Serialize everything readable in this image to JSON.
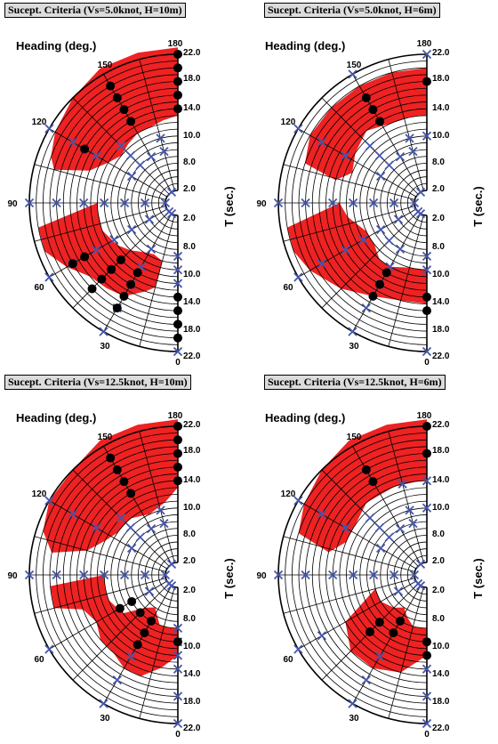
{
  "colors": {
    "region": "#ee2222",
    "cross": "#4455aa",
    "dot": "#000000",
    "title_bg": "#dcdcdc"
  },
  "axes": {
    "heading_label": "Heading (deg.)",
    "period_label": "T (sec.)",
    "angle_ticks": [
      "180",
      "150",
      "120",
      "90",
      "60",
      "30",
      "0"
    ],
    "period_ticks": [
      "22.0",
      "18.0",
      "14.0",
      "10.0",
      "8.0",
      "2.0"
    ]
  },
  "chart_data": [
    {
      "type": "polar-scatter",
      "title": "Sucept. Criteria (Vs=5.0knot, H=10m)",
      "theta_range": [
        0,
        180
      ],
      "period_ticks": [
        2,
        8,
        10,
        14,
        18,
        22
      ],
      "regions": [
        [
          [
            180,
            13
          ],
          [
            180,
            23
          ],
          [
            165,
            23
          ],
          [
            150,
            23
          ],
          [
            135,
            22
          ],
          [
            120,
            21
          ],
          [
            110,
            20
          ],
          [
            105,
            19
          ],
          [
            110,
            14
          ],
          [
            120,
            12
          ],
          [
            130,
            11
          ],
          [
            140,
            11.5
          ],
          [
            150,
            12
          ],
          [
            160,
            12
          ],
          [
            170,
            12.5
          ]
        ],
        [
          [
            90,
            12
          ],
          [
            80,
            21
          ],
          [
            70,
            21
          ],
          [
            60,
            19
          ],
          [
            50,
            17
          ],
          [
            40,
            16.5
          ],
          [
            30,
            16
          ],
          [
            20,
            14
          ],
          [
            15,
            13
          ],
          [
            15,
            9
          ],
          [
            25,
            8.5
          ],
          [
            35,
            9
          ],
          [
            45,
            10
          ],
          [
            55,
            11
          ],
          [
            70,
            12
          ],
          [
            85,
            12
          ]
        ]
      ],
      "crosses": [
        {
          "theta": 90,
          "T": [
            2,
            5,
            8,
            11,
            14,
            18,
            22
          ]
        },
        {
          "theta": 120,
          "T": [
            8,
            14,
            18,
            22
          ]
        },
        {
          "theta": 135,
          "T": [
            8,
            10,
            12
          ]
        },
        {
          "theta": 150,
          "T": [
            2,
            8
          ]
        },
        {
          "theta": 165,
          "T": [
            8,
            10
          ]
        },
        {
          "theta": 180,
          "T": []
        },
        {
          "theta": 60,
          "T": [
            5,
            8,
            11,
            14,
            18,
            22
          ]
        },
        {
          "theta": 45,
          "T": [
            2
          ]
        },
        {
          "theta": 30,
          "T": [
            2,
            8,
            11,
            14,
            18,
            22
          ]
        },
        {
          "theta": 15,
          "T": []
        },
        {
          "theta": 0,
          "T": [
            8,
            10,
            12,
            22
          ]
        }
      ],
      "dots": [
        {
          "theta": 180,
          "T": [
            14,
            16,
            18,
            20,
            22
          ]
        },
        {
          "theta": 150,
          "T": [
            14,
            16,
            18,
            20
          ]
        },
        {
          "theta": 120,
          "T": [
            16
          ]
        },
        {
          "theta": 60,
          "T": [
            16,
            18
          ]
        },
        {
          "theta": 45,
          "T": [
            12,
            14,
            16,
            18
          ]
        },
        {
          "theta": 30,
          "T": [
            12,
            14,
            16,
            18
          ]
        },
        {
          "theta": 0,
          "T": [
            14,
            16,
            18,
            20
          ]
        }
      ]
    },
    {
      "type": "polar-scatter",
      "title": "Sucept. Criteria (Vs=5.0knot, H=6m)",
      "theta_range": [
        0,
        180
      ],
      "period_ticks": [
        2,
        8,
        10,
        14,
        18,
        22
      ],
      "regions": [
        [
          [
            180,
            13
          ],
          [
            180,
            20
          ],
          [
            165,
            20
          ],
          [
            150,
            20
          ],
          [
            135,
            20
          ],
          [
            120,
            20
          ],
          [
            108,
            19
          ],
          [
            104,
            14
          ],
          [
            112,
            12
          ],
          [
            125,
            13
          ],
          [
            140,
            14
          ],
          [
            155,
            13
          ],
          [
            170,
            13
          ]
        ],
        [
          [
            90,
            13
          ],
          [
            80,
            21
          ],
          [
            70,
            21
          ],
          [
            60,
            20
          ],
          [
            45,
            18
          ],
          [
            30,
            16
          ],
          [
            15,
            15
          ],
          [
            0,
            15
          ],
          [
            0,
            10
          ],
          [
            15,
            10
          ],
          [
            30,
            11
          ],
          [
            40,
            11
          ],
          [
            52,
            10
          ],
          [
            65,
            10
          ],
          [
            80,
            12
          ]
        ]
      ],
      "crosses": [
        {
          "theta": 90,
          "T": [
            2,
            5,
            8,
            11,
            14,
            18,
            22
          ]
        },
        {
          "theta": 120,
          "T": [
            8,
            14,
            18,
            22
          ]
        },
        {
          "theta": 135,
          "T": [
            8,
            10,
            12
          ]
        },
        {
          "theta": 150,
          "T": [
            2,
            8,
            22
          ]
        },
        {
          "theta": 165,
          "T": [
            8,
            10
          ]
        },
        {
          "theta": 180,
          "T": [
            10,
            22
          ]
        },
        {
          "theta": 60,
          "T": [
            5,
            8,
            11,
            14,
            18,
            22
          ]
        },
        {
          "theta": 45,
          "T": [
            2,
            8
          ]
        },
        {
          "theta": 30,
          "T": [
            2,
            8,
            11,
            14,
            18,
            22
          ]
        },
        {
          "theta": 15,
          "T": []
        },
        {
          "theta": 0,
          "T": [
            8,
            10,
            22
          ]
        }
      ],
      "dots": [
        {
          "theta": 180,
          "T": [
            18
          ]
        },
        {
          "theta": 150,
          "T": [
            14,
            16,
            18
          ]
        },
        {
          "theta": 30,
          "T": [
            12,
            14,
            16
          ]
        },
        {
          "theta": 0,
          "T": [
            14,
            16
          ]
        }
      ]
    },
    {
      "type": "polar-scatter",
      "title": "Sucept. Criteria (Vs=12.5knot, H=10m)",
      "theta_range": [
        0,
        180
      ],
      "period_ticks": [
        2,
        8,
        10,
        14,
        18,
        22
      ],
      "regions": [
        [
          [
            180,
            13
          ],
          [
            180,
            23
          ],
          [
            165,
            23
          ],
          [
            150,
            23
          ],
          [
            135,
            22
          ],
          [
            120,
            22
          ],
          [
            108,
            21
          ],
          [
            100,
            19
          ],
          [
            105,
            14
          ],
          [
            115,
            12
          ],
          [
            125,
            11
          ],
          [
            140,
            11
          ],
          [
            155,
            10
          ],
          [
            170,
            11
          ]
        ],
        [
          [
            90,
            11
          ],
          [
            85,
            19
          ],
          [
            75,
            19
          ],
          [
            70,
            15
          ],
          [
            60,
            14
          ],
          [
            50,
            15
          ],
          [
            40,
            15
          ],
          [
            30,
            16
          ],
          [
            20,
            16
          ],
          [
            10,
            14
          ],
          [
            0,
            12
          ],
          [
            0,
            8
          ],
          [
            10,
            8
          ],
          [
            20,
            8
          ],
          [
            35,
            6
          ],
          [
            45,
            7
          ],
          [
            55,
            10
          ],
          [
            70,
            11
          ],
          [
            80,
            11
          ]
        ]
      ],
      "crosses": [
        {
          "theta": 90,
          "T": [
            2,
            5,
            8,
            11,
            14,
            18,
            22
          ]
        },
        {
          "theta": 120,
          "T": [
            8,
            14,
            18,
            22
          ]
        },
        {
          "theta": 135,
          "T": [
            8,
            10,
            12
          ]
        },
        {
          "theta": 150,
          "T": [
            2,
            8
          ]
        },
        {
          "theta": 165,
          "T": [
            8,
            10
          ]
        },
        {
          "theta": 180,
          "T": []
        },
        {
          "theta": 60,
          "T": [
            5,
            22
          ]
        },
        {
          "theta": 45,
          "T": [
            2
          ]
        },
        {
          "theta": 30,
          "T": [
            2,
            14,
            18,
            22
          ]
        },
        {
          "theta": 15,
          "T": []
        },
        {
          "theta": 0,
          "T": [
            8,
            10,
            12,
            14,
            18,
            22
          ]
        }
      ],
      "dots": [
        {
          "theta": 180,
          "T": [
            14,
            16,
            18,
            20,
            22
          ]
        },
        {
          "theta": 150,
          "T": [
            14,
            16,
            18,
            20
          ]
        },
        {
          "theta": 60,
          "T": [
            8,
            10
          ]
        },
        {
          "theta": 45,
          "T": [
            8
          ]
        },
        {
          "theta": 30,
          "T": [
            8,
            10,
            12
          ]
        },
        {
          "theta": 0,
          "T": [
            10
          ]
        }
      ]
    },
    {
      "type": "polar-scatter",
      "title": "Sucept. Criteria (Vs=12.5knot, H=6m)",
      "theta_range": [
        0,
        180
      ],
      "period_ticks": [
        2,
        8,
        10,
        14,
        18,
        22
      ],
      "regions": [
        [
          [
            180,
            14
          ],
          [
            180,
            23
          ],
          [
            165,
            23
          ],
          [
            150,
            23
          ],
          [
            135,
            22
          ],
          [
            120,
            21
          ],
          [
            108,
            20
          ],
          [
            103,
            15
          ],
          [
            112,
            13
          ],
          [
            125,
            13
          ],
          [
            140,
            14
          ],
          [
            160,
            14
          ],
          [
            175,
            14
          ]
        ],
        [
          [
            75,
            8
          ],
          [
            60,
            14
          ],
          [
            45,
            16
          ],
          [
            30,
            16
          ],
          [
            15,
            15
          ],
          [
            0,
            12
          ],
          [
            0,
            8
          ],
          [
            15,
            8
          ],
          [
            25,
            7
          ],
          [
            35,
            6
          ],
          [
            45,
            7
          ],
          [
            60,
            8
          ]
        ]
      ],
      "crosses": [
        {
          "theta": 90,
          "T": [
            2,
            5,
            8,
            11,
            14,
            18,
            22
          ]
        },
        {
          "theta": 120,
          "T": [
            8,
            14,
            18,
            22
          ]
        },
        {
          "theta": 135,
          "T": [
            8,
            10,
            12
          ]
        },
        {
          "theta": 150,
          "T": [
            2,
            8
          ]
        },
        {
          "theta": 165,
          "T": [
            8,
            10,
            14
          ]
        },
        {
          "theta": 180,
          "T": [
            14,
            10
          ]
        },
        {
          "theta": 60,
          "T": [
            5,
            18,
            22
          ]
        },
        {
          "theta": 45,
          "T": [
            2
          ]
        },
        {
          "theta": 30,
          "T": [
            2,
            14,
            18,
            22
          ]
        },
        {
          "theta": 15,
          "T": []
        },
        {
          "theta": 0,
          "T": [
            14,
            18,
            22
          ]
        }
      ],
      "dots": [
        {
          "theta": 180,
          "T": [
            18,
            22
          ]
        },
        {
          "theta": 150,
          "T": [
            16,
            18
          ]
        },
        {
          "theta": 45,
          "T": [
            10,
            12
          ]
        },
        {
          "theta": 30,
          "T": [
            8,
            10
          ]
        },
        {
          "theta": 0,
          "T": [
            10,
            12
          ]
        }
      ]
    }
  ]
}
